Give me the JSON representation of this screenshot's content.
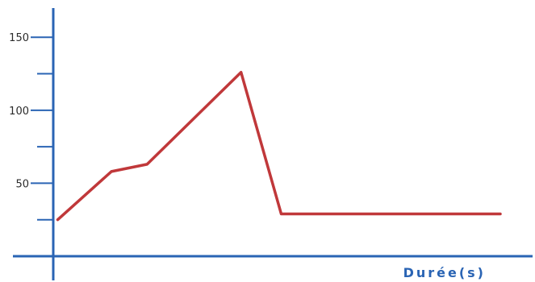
{
  "chart_data": {
    "type": "line",
    "title": "",
    "xlabel": "Durée(s)",
    "ylabel": "",
    "ylim": [
      0,
      170
    ],
    "xlim": [
      0,
      100
    ],
    "y_major_ticks": [
      50,
      100,
      150
    ],
    "y_minor_ticks": [
      25,
      75,
      125
    ],
    "y_tick_labels": [
      "50",
      "100",
      "150"
    ],
    "grid": false,
    "series": [
      {
        "x": [
          1,
          13,
          21,
          42,
          51,
          100
        ],
        "y": [
          25,
          58,
          63,
          126,
          29,
          29
        ]
      }
    ],
    "colors": {
      "axis": "#2a64b4",
      "line": "#c0383a",
      "tick_text": "#2b2b2b"
    }
  }
}
